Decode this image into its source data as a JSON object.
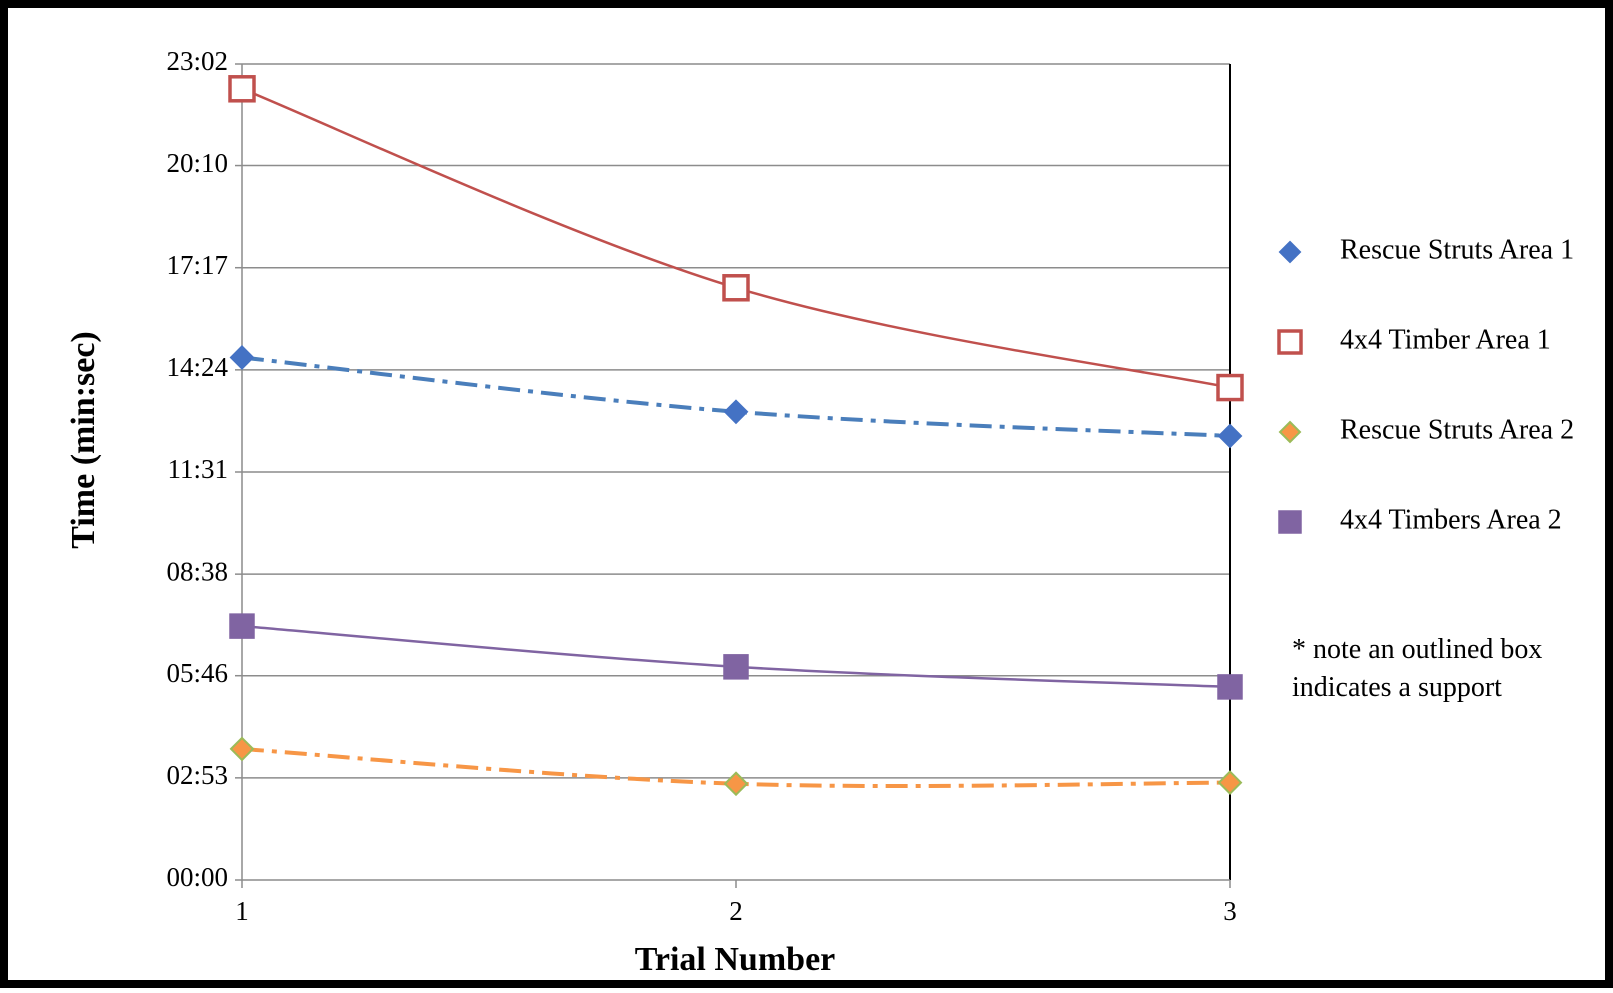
{
  "chart_data": {
    "type": "line",
    "title": "",
    "xlabel": "Trial Number",
    "ylabel": "Time (min:sec)",
    "x": [
      1,
      2,
      3
    ],
    "x_tick_labels": [
      "1",
      "2",
      "3"
    ],
    "y_unit": "seconds",
    "ylim": [
      0,
      1382
    ],
    "y_ticks": [
      0,
      173,
      346,
      518,
      691,
      864,
      1037,
      1210,
      1382
    ],
    "y_tick_labels": [
      "00:00",
      "02:53",
      "05:46",
      "08:38",
      "11:31",
      "14:24",
      "17:17",
      "20:10",
      "23:02"
    ],
    "grid": true,
    "legend_position": "right",
    "series": [
      {
        "name": "Rescue Struts Area 1",
        "values": [
          885,
          793,
          752
        ],
        "value_labels": [
          "14:45",
          "13:13",
          "12:32"
        ],
        "marker": "diamond",
        "marker_fill": "#4472C4",
        "marker_stroke": "#4472C4",
        "line_color": "#4A7EBB",
        "line_style": "dash-dot"
      },
      {
        "name": "4x4 Timber Area 1",
        "values": [
          1340,
          1003,
          834
        ],
        "value_labels": [
          "22:20",
          "16:43",
          "13:54"
        ],
        "marker": "square-open",
        "marker_fill": "#ffffff",
        "marker_stroke": "#C0504D",
        "line_color": "#C0504D",
        "line_style": "solid"
      },
      {
        "name": "Rescue Struts Area 2",
        "values": [
          222,
          163,
          165
        ],
        "value_labels": [
          "03:42",
          "02:43",
          "02:45"
        ],
        "marker": "diamond",
        "marker_fill": "#F79646",
        "marker_stroke": "#9BBB59",
        "line_color": "#F79646",
        "line_style": "dash-dot"
      },
      {
        "name": "4x4 Timbers Area 2",
        "values": [
          430,
          361,
          327
        ],
        "value_labels": [
          "07:10",
          "06:01",
          "05:27"
        ],
        "marker": "square",
        "marker_fill": "#8064A2",
        "marker_stroke": "#8064A2",
        "line_color": "#8064A2",
        "line_style": "solid"
      }
    ],
    "annotations": [
      "* note an outlined box",
      "indicates a support"
    ]
  }
}
